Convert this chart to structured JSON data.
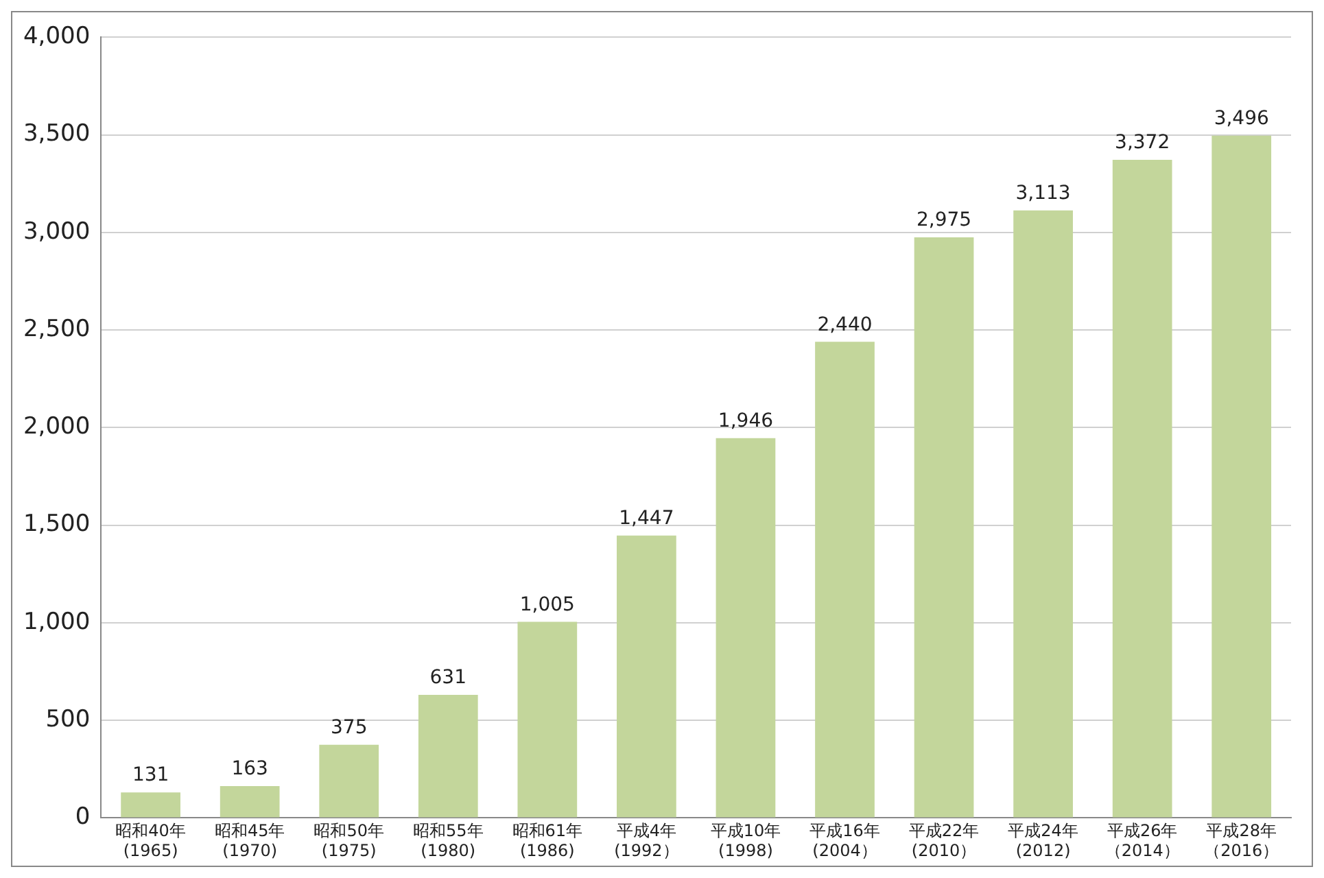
{
  "chart_data": {
    "type": "bar",
    "categories": [
      "昭和40年(1965)",
      "昭和45年(1970)",
      "昭和50年(1975)",
      "昭和55年(1980)",
      "昭和61年(1986)",
      "平成4年(1992）",
      "平成10年(1998)",
      "平成16年(2004）",
      "平成22年(2010）",
      "平成24年(2012)",
      "平成26年（2014）",
      "平成28年（2016）"
    ],
    "values": [
      131,
      163,
      375,
      631,
      1005,
      1447,
      1946,
      2440,
      2975,
      3113,
      3372,
      3496
    ],
    "value_labels": [
      "131",
      "163",
      "375",
      "631",
      "1,005",
      "1,447",
      "1,946",
      "2,440",
      "2,975",
      "3,113",
      "3,372",
      "3,496"
    ],
    "color": "#c3d69b",
    "ylim": [
      0,
      4000
    ],
    "yticks": [
      {
        "value": 0,
        "label": "0"
      },
      {
        "value": 500,
        "label": "500"
      },
      {
        "value": 1000,
        "label": "1,000"
      },
      {
        "value": 1500,
        "label": "1,500"
      },
      {
        "value": 2000,
        "label": "2,000"
      },
      {
        "value": 2500,
        "label": "2,500"
      },
      {
        "value": 3000,
        "label": "3,000"
      },
      {
        "value": 3500,
        "label": "3,500"
      },
      {
        "value": 4000,
        "label": "4,000"
      }
    ],
    "grid": "y"
  }
}
